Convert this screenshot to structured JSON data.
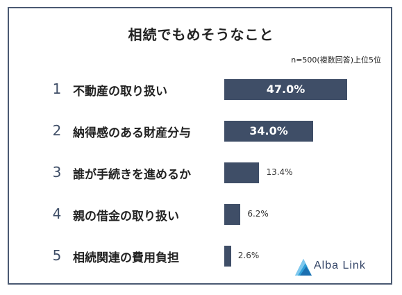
{
  "chart_data": {
    "type": "bar",
    "title": "相続でもめそうなこと",
    "note": "n=500(複数回答)上位5位",
    "ranks": [
      "1",
      "2",
      "3",
      "4",
      "5"
    ],
    "categories": [
      "不動産の取り扱い",
      "納得感のある財産分与",
      "誰が手続きを進めるか",
      "親の借金の取り扱い",
      "相続関連の費用負担"
    ],
    "values": [
      47.0,
      34.0,
      13.4,
      6.2,
      2.6
    ],
    "value_labels": [
      "47.0%",
      "34.0%",
      "13.4%",
      "6.2%",
      "2.6%"
    ],
    "xlim": [
      0,
      50
    ],
    "grid": false,
    "colors": {
      "bar": "#3f4e67",
      "frame": "#4a5972",
      "logo": "#2f9fd8"
    }
  },
  "brand": {
    "name": "Alba Link",
    "icon": "alba-link-logo-icon"
  }
}
